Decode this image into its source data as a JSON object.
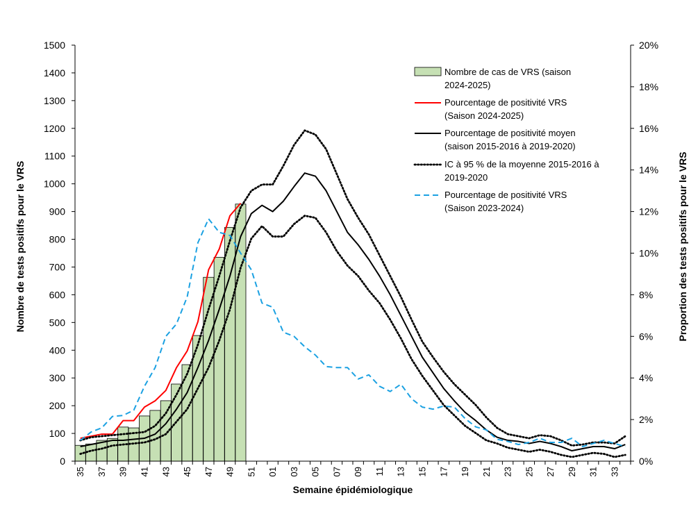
{
  "chart_data": {
    "type": "bar+line",
    "xlabel": "Semaine épidémiologique",
    "ylabel_left": "Nombre de tests positifs pour le VRS",
    "ylabel_right": "Proportion des tests positifs pour le VRS",
    "ylim_left": [
      0,
      1500
    ],
    "ylim_right": [
      0,
      20
    ],
    "yticks_left": [
      "0",
      "100",
      "200",
      "300",
      "400",
      "500",
      "600",
      "700",
      "800",
      "900",
      "1000",
      "1100",
      "1200",
      "1300",
      "1400",
      "1500"
    ],
    "yticks_right": [
      "0%",
      "2%",
      "4%",
      "6%",
      "8%",
      "10%",
      "12%",
      "14%",
      "16%",
      "18%",
      "20%"
    ],
    "weeks": [
      "35",
      "36",
      "37",
      "38",
      "39",
      "40",
      "41",
      "42",
      "43",
      "44",
      "45",
      "46",
      "47",
      "48",
      "49",
      "50",
      "51",
      "52",
      "01",
      "02",
      "03",
      "04",
      "05",
      "06",
      "07",
      "08",
      "09",
      "10",
      "11",
      "12",
      "13",
      "14",
      "15",
      "16",
      "17",
      "18",
      "19",
      "20",
      "21",
      "22",
      "23",
      "24",
      "25",
      "26",
      "27",
      "28",
      "29",
      "30",
      "31",
      "32",
      "33",
      "34"
    ],
    "xtick_labels": [
      "35",
      "37",
      "39",
      "41",
      "43",
      "45",
      "47",
      "49",
      "51",
      "01",
      "03",
      "05",
      "07",
      "09",
      "11",
      "13",
      "15",
      "17",
      "19",
      "21",
      "23",
      "25",
      "27",
      "29",
      "31",
      "33"
    ],
    "grid": false,
    "legend_position": "top-right",
    "series": [
      {
        "name": "Nombre de cas de VRS (saison 2024-2025)",
        "type": "bar",
        "axis": "left",
        "color": "#c6e0b4",
        "values": [
          57,
          62,
          75,
          82,
          123,
          120,
          163,
          183,
          218,
          278,
          348,
          453,
          663,
          735,
          843,
          927
        ]
      },
      {
        "name": "Pourcentage de positivité VRS (Saison 2024-2025)",
        "type": "line",
        "axis": "right",
        "color": "#ff0000",
        "style": "solid",
        "values": [
          1.1,
          1.2,
          1.3,
          1.3,
          1.95,
          1.95,
          2.6,
          2.9,
          3.4,
          4.5,
          5.3,
          6.7,
          9.2,
          10.2,
          11.8,
          12.4
        ]
      },
      {
        "name": "Pourcentage de positivité moyen (saison 2015-2016 à 2019-2020)",
        "type": "line",
        "axis": "right",
        "color": "#000000",
        "style": "solid",
        "values": [
          0.7,
          0.8,
          0.9,
          1.0,
          1.0,
          1.05,
          1.1,
          1.3,
          1.8,
          2.5,
          3.3,
          4.5,
          5.8,
          7.3,
          8.9,
          10.8,
          11.9,
          12.3,
          12.0,
          12.5,
          13.2,
          13.85,
          13.7,
          13.0,
          12.0,
          11.0,
          10.4,
          9.7,
          8.9,
          8.0,
          7.0,
          6.0,
          5.0,
          4.25,
          3.5,
          2.9,
          2.35,
          1.95,
          1.5,
          1.15,
          1.0,
          0.95,
          0.85,
          0.95,
          0.85,
          0.7,
          0.5,
          0.6,
          0.7,
          0.7,
          0.6,
          0.8
        ]
      },
      {
        "name": "IC à 95 % de la moyenne 2015-2016 à 2019-2020",
        "type": "line",
        "axis": "right",
        "color": "#000000",
        "style": "dotted",
        "upper": [
          1.0,
          1.15,
          1.2,
          1.25,
          1.3,
          1.35,
          1.4,
          1.7,
          2.3,
          3.2,
          4.2,
          5.6,
          7.3,
          8.9,
          10.6,
          12.2,
          13.0,
          13.3,
          13.3,
          14.2,
          15.2,
          15.9,
          15.7,
          15.0,
          13.8,
          12.6,
          11.7,
          10.9,
          9.9,
          8.9,
          7.9,
          6.8,
          5.75,
          5.0,
          4.3,
          3.7,
          3.2,
          2.7,
          2.1,
          1.6,
          1.3,
          1.2,
          1.1,
          1.25,
          1.2,
          1.0,
          0.75,
          0.8,
          0.9,
          0.9,
          0.85,
          1.2
        ],
        "lower": [
          0.35,
          0.5,
          0.6,
          0.75,
          0.8,
          0.85,
          0.9,
          1.05,
          1.3,
          1.9,
          2.5,
          3.5,
          4.5,
          5.8,
          7.3,
          9.3,
          10.7,
          11.3,
          10.8,
          10.8,
          11.4,
          11.8,
          11.7,
          11.0,
          10.1,
          9.4,
          8.9,
          8.2,
          7.6,
          6.8,
          5.9,
          4.9,
          4.1,
          3.4,
          2.7,
          2.2,
          1.7,
          1.35,
          1.0,
          0.85,
          0.65,
          0.55,
          0.45,
          0.55,
          0.45,
          0.3,
          0.2,
          0.3,
          0.4,
          0.35,
          0.2,
          0.3
        ]
      },
      {
        "name": "Pourcentage de positivité VRS (Saison 2023-2024)",
        "type": "line",
        "axis": "right",
        "color": "#1ba1e2",
        "style": "dashed",
        "values": [
          1.0,
          1.4,
          1.6,
          2.15,
          2.2,
          2.45,
          3.6,
          4.5,
          6.0,
          6.6,
          7.9,
          10.5,
          11.65,
          11.0,
          10.85,
          10.0,
          9.2,
          7.6,
          7.4,
          6.2,
          6.0,
          5.5,
          5.1,
          4.55,
          4.5,
          4.5,
          3.95,
          4.15,
          3.6,
          3.35,
          3.7,
          3.0,
          2.6,
          2.5,
          2.65,
          2.6,
          2.05,
          1.65,
          1.5,
          1.05,
          0.95,
          0.8,
          0.9,
          1.1,
          0.9,
          0.9,
          1.1,
          0.7,
          0.85,
          1.0,
          0.85,
          0.7
        ]
      }
    ]
  }
}
